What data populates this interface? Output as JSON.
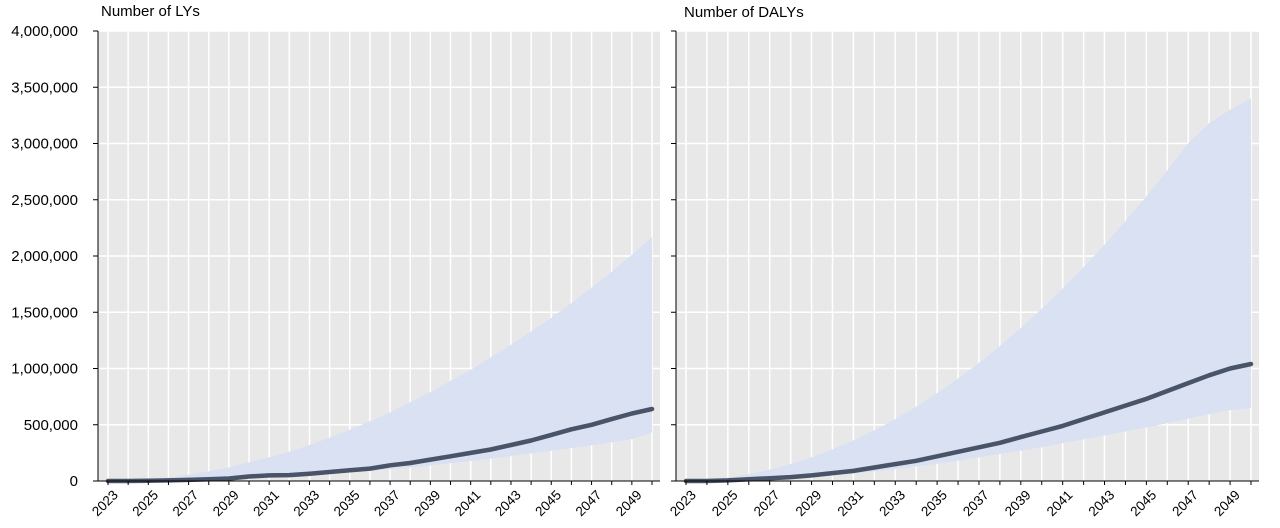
{
  "chart_data": [
    {
      "type": "area",
      "title": "Number of LYs",
      "xlabel": "",
      "ylabel": "",
      "x": [
        2023,
        2024,
        2025,
        2026,
        2027,
        2028,
        2029,
        2030,
        2031,
        2032,
        2033,
        2034,
        2035,
        2036,
        2037,
        2038,
        2039,
        2040,
        2041,
        2042,
        2043,
        2044,
        2045,
        2046,
        2047,
        2048,
        2049,
        2050
      ],
      "xtick_labels": [
        "2023",
        "2025",
        "2027",
        "2029",
        "2031",
        "2033",
        "2035",
        "2037",
        "2039",
        "2041",
        "2043",
        "2045",
        "2047",
        "2049"
      ],
      "ylim": [
        0,
        4000000
      ],
      "ytick_labels": [
        "0",
        "500,000",
        "1,000,000",
        "1,500,000",
        "2,000,000",
        "2,500,000",
        "3,000,000",
        "3,500,000",
        "4,000,000"
      ],
      "yticks": [
        0,
        500000,
        1000000,
        1500000,
        2000000,
        2500000,
        3000000,
        3500000,
        4000000
      ],
      "grid": true,
      "series": [
        {
          "role": "central",
          "values": [
            0,
            0,
            2000,
            5000,
            10000,
            15000,
            22000,
            40000,
            50000,
            52000,
            65000,
            80000,
            95000,
            110000,
            140000,
            160000,
            190000,
            220000,
            250000,
            280000,
            320000,
            360000,
            410000,
            460000,
            500000,
            550000,
            600000,
            640000
          ]
        },
        {
          "role": "upper-bound",
          "values": [
            0,
            5000,
            15000,
            30000,
            55000,
            85000,
            120000,
            165000,
            210000,
            260000,
            320000,
            385000,
            455000,
            530000,
            610000,
            700000,
            790000,
            890000,
            990000,
            1100000,
            1210000,
            1330000,
            1450000,
            1580000,
            1720000,
            1860000,
            2010000,
            2170000
          ]
        },
        {
          "role": "lower-bound",
          "values": [
            0,
            0,
            0,
            0,
            5000,
            10000,
            15000,
            20000,
            28000,
            38000,
            50000,
            62000,
            76000,
            90000,
            105000,
            120000,
            138000,
            158000,
            178000,
            200000,
            222000,
            245000,
            268000,
            292000,
            318000,
            345000,
            372000,
            430000
          ]
        }
      ],
      "colors": {
        "line": "#4a5468",
        "band": "#d9e1f2",
        "plot_bg": "#e8e8e8",
        "grid": "#ffffff"
      }
    },
    {
      "type": "area",
      "title": "Number of DALYs",
      "xlabel": "",
      "ylabel": "",
      "x": [
        2023,
        2024,
        2025,
        2026,
        2027,
        2028,
        2029,
        2030,
        2031,
        2032,
        2033,
        2034,
        2035,
        2036,
        2037,
        2038,
        2039,
        2040,
        2041,
        2042,
        2043,
        2044,
        2045,
        2046,
        2047,
        2048,
        2049,
        2050
      ],
      "xtick_labels": [
        "2023",
        "2025",
        "2027",
        "2029",
        "2031",
        "2033",
        "2035",
        "2037",
        "2039",
        "2041",
        "2043",
        "2045",
        "2047",
        "2049"
      ],
      "ylim": [
        0,
        4000000
      ],
      "grid": true,
      "series": [
        {
          "role": "central",
          "values": [
            0,
            0,
            5000,
            15000,
            25000,
            35000,
            50000,
            70000,
            90000,
            120000,
            150000,
            180000,
            220000,
            260000,
            300000,
            340000,
            390000,
            440000,
            490000,
            550000,
            610000,
            670000,
            730000,
            800000,
            870000,
            940000,
            1000000,
            1040000
          ]
        },
        {
          "role": "upper-bound",
          "values": [
            0,
            10000,
            30000,
            60000,
            100000,
            150000,
            210000,
            280000,
            360000,
            450000,
            550000,
            660000,
            780000,
            910000,
            1050000,
            1200000,
            1360000,
            1530000,
            1710000,
            1900000,
            2100000,
            2310000,
            2530000,
            2760000,
            3000000,
            3180000,
            3300000,
            3400000
          ]
        },
        {
          "role": "lower-bound",
          "values": [
            0,
            0,
            0,
            5000,
            10000,
            20000,
            32000,
            48000,
            65000,
            85000,
            105000,
            130000,
            155000,
            180000,
            210000,
            240000,
            270000,
            300000,
            335000,
            370000,
            405000,
            440000,
            475000,
            515000,
            555000,
            595000,
            630000,
            650000
          ]
        }
      ],
      "colors": {
        "line": "#4a5468",
        "band": "#d9e1f2",
        "plot_bg": "#e8e8e8",
        "grid": "#ffffff"
      }
    }
  ]
}
